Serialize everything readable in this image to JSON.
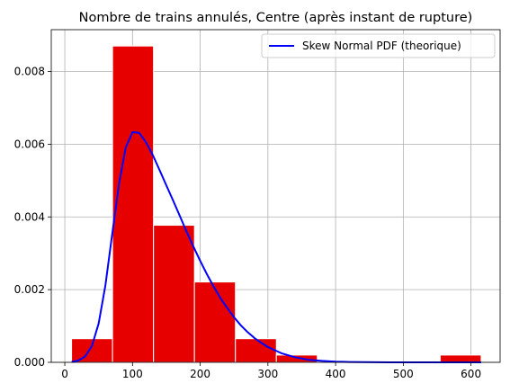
{
  "chart_data": {
    "type": "bar",
    "title": "Nombre de trains annulés, Centre (après instant de rupture)",
    "xlabel": "",
    "ylabel": "",
    "xlim": [
      -20,
      643
    ],
    "ylim": [
      0,
      0.00915
    ],
    "x_ticks": [
      0,
      100,
      200,
      300,
      400,
      500,
      600
    ],
    "x_tick_labels": [
      "0",
      "100",
      "200",
      "300",
      "400",
      "500",
      "600"
    ],
    "y_ticks": [
      0,
      0.002,
      0.004,
      0.006,
      0.008
    ],
    "y_tick_labels": [
      "0.000",
      "0.002",
      "0.004",
      "0.006",
      "0.008"
    ],
    "grid": true,
    "legend_position": "top-right",
    "histogram": {
      "bin_edges": [
        10,
        70.5,
        131,
        191.5,
        252,
        312.5,
        373,
        433.5,
        494,
        554.5,
        615
      ],
      "densities": [
        0.00065,
        0.0087,
        0.00377,
        0.00221,
        0.00065,
        0.0002,
        0,
        0,
        0,
        0.0002
      ],
      "color": "#e60000",
      "edgecolor": "#ffffff"
    },
    "series": [
      {
        "name": "Skew Normal PDF (theorique)",
        "kind": "line",
        "color": "#0000ff",
        "x": [
          10,
          20,
          30,
          40,
          50,
          60,
          70,
          80,
          90,
          100,
          110,
          120,
          130,
          140,
          150,
          160,
          170,
          180,
          190,
          200,
          210,
          220,
          230,
          240,
          250,
          260,
          270,
          280,
          290,
          300,
          320,
          340,
          360,
          380,
          400,
          420,
          440,
          460,
          480,
          500,
          530,
          560,
          590,
          615
        ],
        "values": [
          1e-05,
          5e-05,
          0.00016,
          0.00045,
          0.00107,
          0.00212,
          0.00352,
          0.00491,
          0.00591,
          0.00633,
          0.00631,
          0.00605,
          0.0057,
          0.00529,
          0.00487,
          0.00445,
          0.00402,
          0.00359,
          0.00318,
          0.00279,
          0.00242,
          0.00208,
          0.00176,
          0.00149,
          0.00124,
          0.00102,
          0.00083,
          0.00067,
          0.00054,
          0.00042,
          0.00025,
          0.00014,
          7e-05,
          4e-05,
          2e-05,
          1e-05,
          4e-06,
          2e-06,
          1e-06,
          0.0,
          0.0,
          0.0,
          0.0,
          0.0
        ]
      }
    ]
  }
}
